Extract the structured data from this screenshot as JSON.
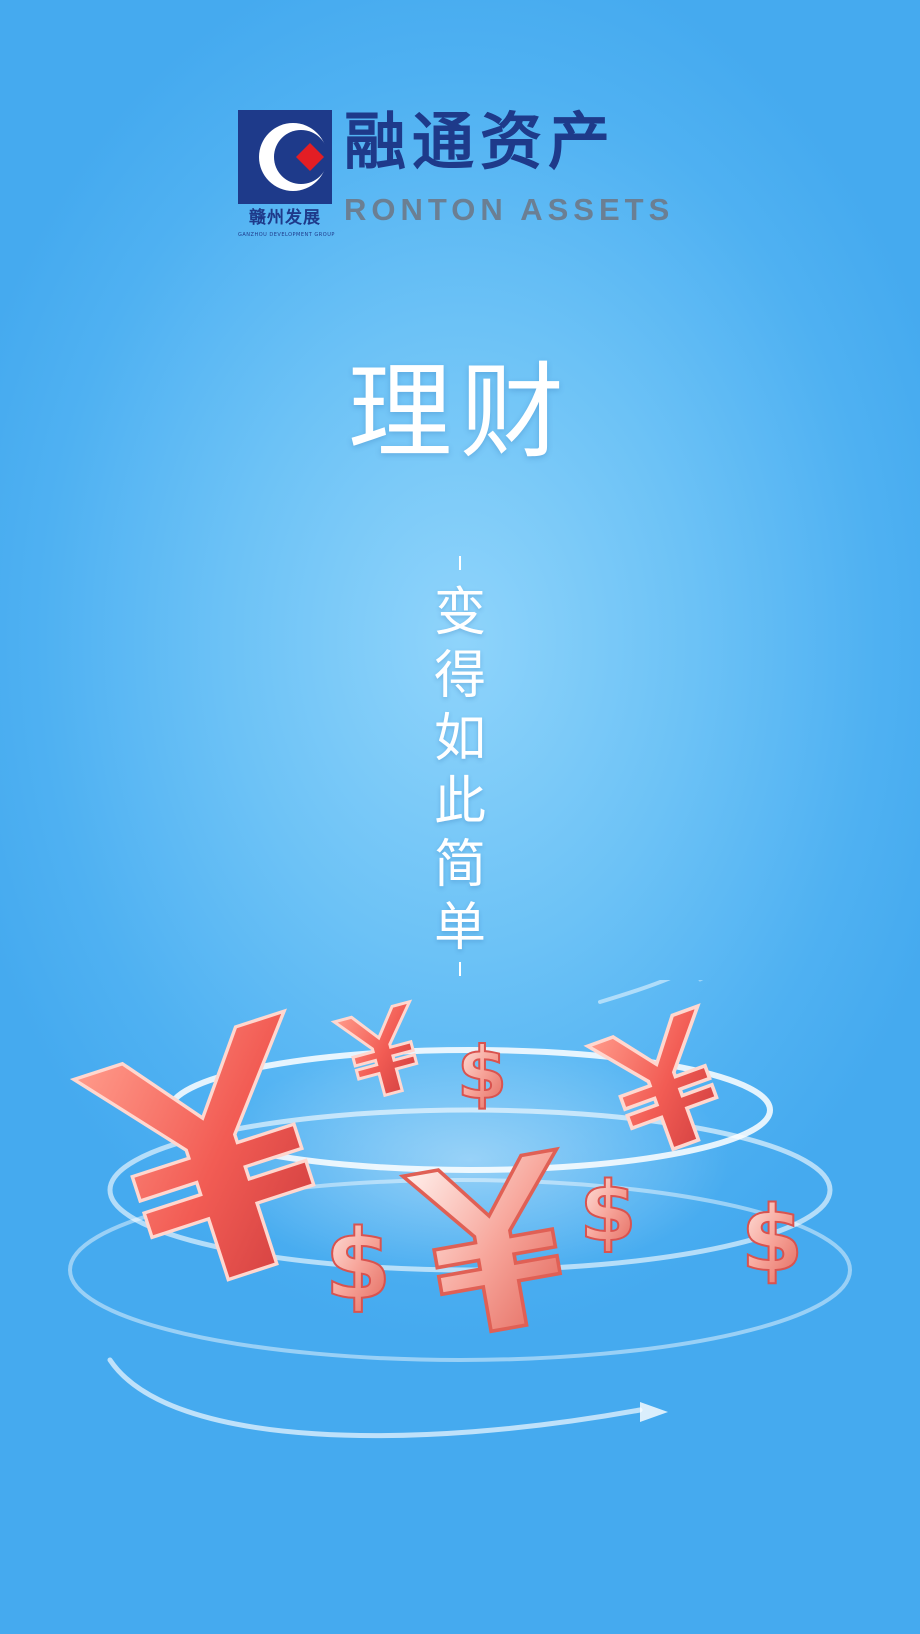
{
  "brand": {
    "name_cn": "融通资产",
    "name_en": "RONTON ASSETS",
    "parent_cn": "赣州发展",
    "parent_en": "GANZHOU DEVELOPMENT GROUP",
    "colors": {
      "navy": "#1e3a8a",
      "red": "#e31e24",
      "gray": "#6b7f93"
    }
  },
  "headline": "理财",
  "slogan": "变得如此简单",
  "illustration": {
    "icons": [
      "yen-icon",
      "dollar-icon",
      "swirl-icon"
    ],
    "accent": "#ef5350"
  }
}
